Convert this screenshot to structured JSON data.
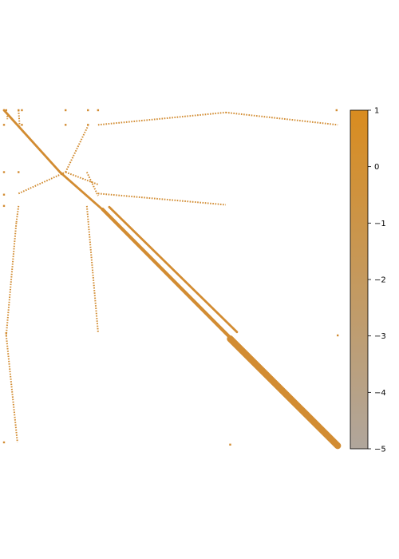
{
  "chart_data": {
    "type": "heatmap",
    "title": "",
    "xlabel": "",
    "ylabel": "",
    "xlim": [
      0,
      300
    ],
    "ylim": [
      300,
      0
    ],
    "point_color": "#D28C32",
    "colorbar": {
      "min": -5,
      "max": 1,
      "ticks": [
        1,
        0,
        -1,
        -2,
        -3,
        -4,
        -5
      ],
      "tick_labels": [
        "1",
        "0",
        "−1",
        "−2",
        "−3",
        "−4",
        "−5"
      ],
      "color_top": "#D98C1F",
      "color_bottom": "#B0A69C",
      "placement": "right"
    },
    "diagonal_bands": [
      {
        "from": [
          0,
          0
        ],
        "to": [
          50,
          55
        ],
        "width": 2
      },
      {
        "from": [
          50,
          55
        ],
        "to": [
          90,
          90
        ],
        "width": 2
      },
      {
        "from": [
          88,
          88
        ],
        "to": [
          202,
          202
        ],
        "width": 3
      },
      {
        "from": [
          94,
          86
        ],
        "to": [
          208,
          197
        ],
        "width": 2
      },
      {
        "from": [
          202,
          203
        ],
        "to": [
          298,
          298
        ],
        "width": 6
      }
    ],
    "dotted_segments": [
      {
        "from": [
          3,
          5
        ],
        "to": [
          3,
          8
        ]
      },
      {
        "from": [
          13,
          0
        ],
        "to": [
          14,
          14
        ]
      },
      {
        "from": [
          13,
          85
        ],
        "to": [
          11,
          100
        ]
      },
      {
        "from": [
          11,
          100
        ],
        "to": [
          2,
          200
        ]
      },
      {
        "from": [
          2,
          200
        ],
        "to": [
          12,
          295
        ]
      },
      {
        "from": [
          13,
          74
        ],
        "to": [
          55,
          55
        ]
      },
      {
        "from": [
          55,
          55
        ],
        "to": [
          75,
          14
        ]
      },
      {
        "from": [
          55,
          55
        ],
        "to": [
          84,
          66
        ]
      },
      {
        "from": [
          74,
          55
        ],
        "to": [
          84,
          76
        ]
      },
      {
        "from": [
          74,
          85
        ],
        "to": [
          84,
          197
        ]
      },
      {
        "from": [
          84,
          13
        ],
        "to": [
          198,
          2
        ]
      },
      {
        "from": [
          198,
          2
        ],
        "to": [
          298,
          13
        ]
      },
      {
        "from": [
          84,
          74
        ],
        "to": [
          198,
          84
        ]
      }
    ],
    "isolated_points": [
      [
        2,
        0
      ],
      [
        13,
        0
      ],
      [
        16,
        0
      ],
      [
        55,
        0
      ],
      [
        75,
        0
      ],
      [
        84,
        0
      ],
      [
        297,
        0
      ],
      [
        0,
        13
      ],
      [
        16,
        13
      ],
      [
        55,
        13
      ],
      [
        75,
        13
      ],
      [
        0,
        55
      ],
      [
        13,
        55
      ],
      [
        0,
        75
      ],
      [
        0,
        85
      ],
      [
        2,
        198
      ],
      [
        298,
        200
      ],
      [
        0,
        295
      ],
      [
        202,
        297
      ],
      [
        299,
        299
      ]
    ]
  }
}
